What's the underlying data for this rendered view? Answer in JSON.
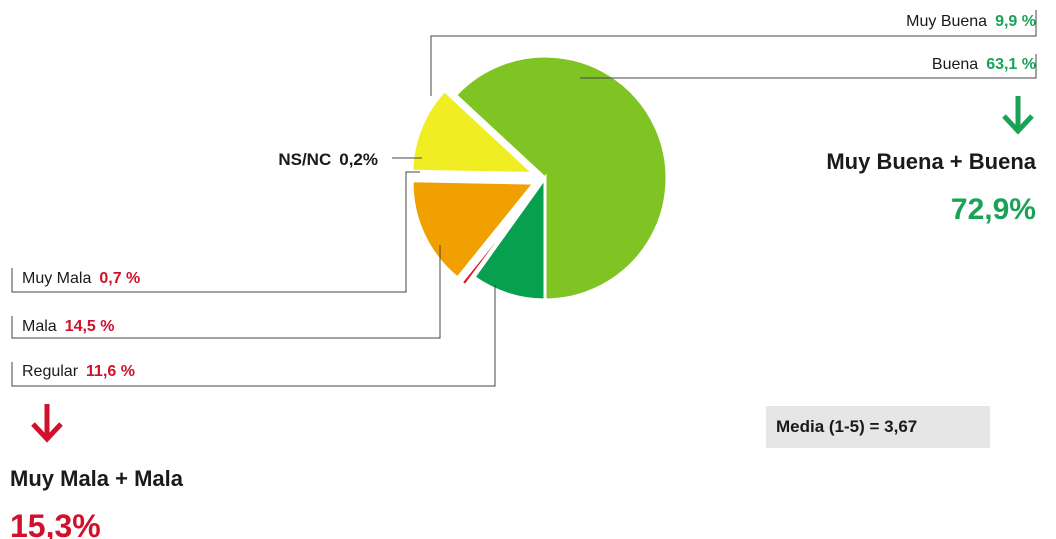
{
  "chart_data": {
    "type": "pie",
    "slices": [
      {
        "label": "Buena",
        "value": "63,1 %",
        "pct": 63.1,
        "color": "#80c423",
        "value_color": "#1aa358",
        "exploded": false
      },
      {
        "label": "Muy Buena",
        "value": "9,9 %",
        "pct": 9.9,
        "color": "#06a04f",
        "value_color": "#1aa358",
        "exploded": false
      },
      {
        "label": "NS/NC",
        "value": "0,2%",
        "pct": 0.2,
        "color": "#cfcfcf",
        "value_color": "#1a1a1a",
        "exploded": true
      },
      {
        "label": "Muy Mala",
        "value": "0,7 %",
        "pct": 0.7,
        "color": "#d91a2a",
        "value_color": "#d0112b",
        "exploded": true
      },
      {
        "label": "Mala",
        "value": "14,5 %",
        "pct": 14.5,
        "color": "#f0a000",
        "value_color": "#d0112b",
        "exploded": true
      },
      {
        "label": "Regular",
        "value": "11,6 %",
        "pct": 11.6,
        "color": "#f0ee23",
        "value_color": "#d0112b",
        "exploded": true
      }
    ]
  },
  "summary_positive": {
    "label": "Muy Buena + Buena",
    "value": "72,9%",
    "color": "#1aa358",
    "arrow_icon": "arrow-down-icon"
  },
  "summary_negative": {
    "label": "Muy Mala + Mala",
    "value": "15,3%",
    "color": "#d0112b",
    "arrow_icon": "arrow-down-icon"
  },
  "media": {
    "text": "Media (1-5) = 3,67"
  }
}
